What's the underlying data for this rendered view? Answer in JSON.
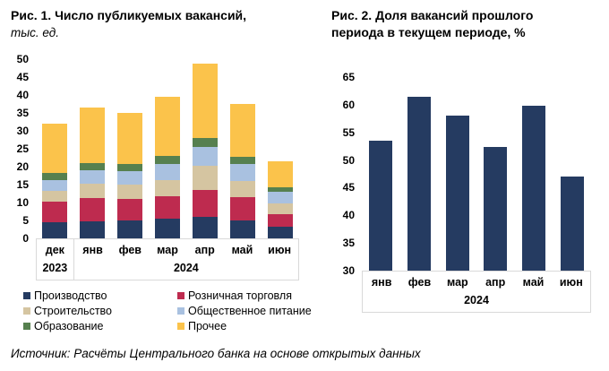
{
  "source": "Источник: Расчёты Центрального банка на основе открытых данных",
  "chart_data": [
    {
      "type": "bar",
      "subtype": "stacked",
      "title": "Рис. 1. Число публикуемых вакансий,",
      "subtitle": "тыс. ед.",
      "categories": [
        "дек",
        "янв",
        "фев",
        "мар",
        "апр",
        "май",
        "июн"
      ],
      "year_groups": [
        {
          "label": "2023",
          "span": 1
        },
        {
          "label": "2024",
          "span": 6
        }
      ],
      "series": [
        {
          "name": "Производство",
          "color": "#253B61",
          "values": [
            4.6,
            4.8,
            5.0,
            5.4,
            6.0,
            5.0,
            3.3
          ]
        },
        {
          "name": "Розничная торговля",
          "color": "#BE2B4F",
          "values": [
            5.6,
            6.4,
            6.0,
            6.3,
            7.5,
            6.5,
            3.5
          ]
        },
        {
          "name": "Строительство",
          "color": "#D5C5A1",
          "values": [
            3.0,
            4.0,
            4.0,
            4.5,
            6.8,
            4.6,
            3.0
          ]
        },
        {
          "name": "Общественное питание",
          "color": "#A9C1E0",
          "values": [
            3.1,
            3.7,
            3.7,
            4.6,
            5.2,
            4.6,
            3.1
          ]
        },
        {
          "name": "Образование",
          "color": "#56804F",
          "values": [
            2.0,
            2.1,
            2.0,
            2.1,
            2.4,
            2.0,
            1.4
          ]
        },
        {
          "name": "Прочее",
          "color": "#FBC34B",
          "values": [
            13.7,
            15.5,
            14.3,
            16.5,
            20.8,
            14.7,
            7.2
          ]
        }
      ],
      "totals": [
        32.0,
        36.5,
        35.0,
        39.4,
        48.7,
        37.4,
        21.5
      ],
      "ylim": [
        0,
        50
      ],
      "yticks": [
        0,
        5,
        10,
        15,
        20,
        25,
        30,
        35,
        40,
        45,
        50
      ],
      "grid": false,
      "legend_position": "bottom"
    },
    {
      "type": "bar",
      "title": "Рис. 2. Доля вакансий прошлого периода в текущем периоде, %",
      "categories": [
        "янв",
        "фев",
        "мар",
        "апр",
        "май",
        "июн"
      ],
      "values": [
        53.5,
        61.5,
        58.0,
        52.4,
        59.8,
        47.0
      ],
      "year_label": "2024",
      "color": "#253B61",
      "ylim": [
        30,
        65
      ],
      "yticks": [
        30,
        35,
        40,
        45,
        50,
        55,
        60,
        65
      ],
      "grid": false,
      "legend_position": "none"
    }
  ]
}
